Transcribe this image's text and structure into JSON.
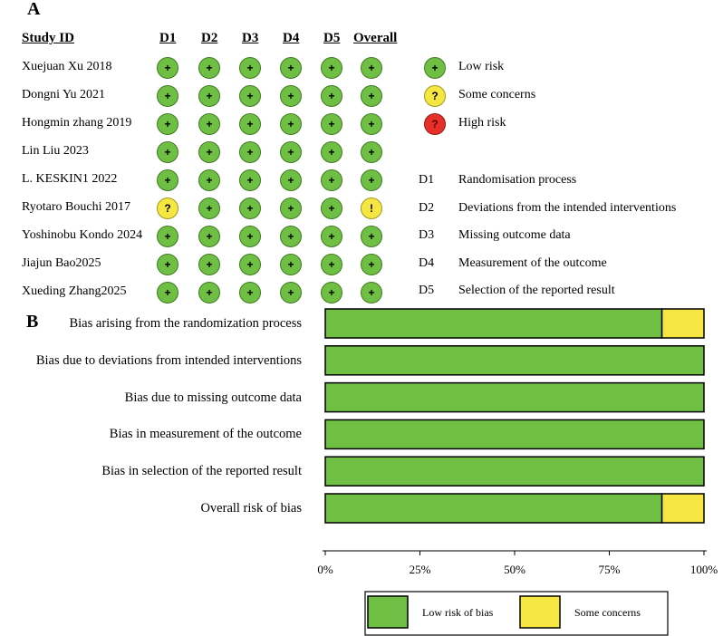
{
  "panel_labels": {
    "a": "A",
    "b": "B"
  },
  "colors": {
    "low": "#6fbf45",
    "some": "#f5e642",
    "high": "#e8302a",
    "low_border": "#3f7a22",
    "some_border": "#9a9a20",
    "high_border": "#8a1a15"
  },
  "symbols": {
    "low": "+",
    "some": "?",
    "high": "?",
    "overall_some": "!"
  },
  "traffic_light": {
    "headers": {
      "study": "Study ID",
      "domains": [
        "D1",
        "D2",
        "D3",
        "D4",
        "D5"
      ],
      "overall": "Overall"
    },
    "studies": [
      {
        "name": "Xuejuan Xu 2018",
        "ratings": [
          "low",
          "low",
          "low",
          "low",
          "low"
        ],
        "overall": "low"
      },
      {
        "name": "Dongni Yu 2021",
        "ratings": [
          "low",
          "low",
          "low",
          "low",
          "low"
        ],
        "overall": "low"
      },
      {
        "name": "Hongmin zhang 2019",
        "ratings": [
          "low",
          "low",
          "low",
          "low",
          "low"
        ],
        "overall": "low"
      },
      {
        "name": "Lin Liu 2023",
        "ratings": [
          "low",
          "low",
          "low",
          "low",
          "low"
        ],
        "overall": "low"
      },
      {
        "name": "L. KESKIN1 2022",
        "ratings": [
          "low",
          "low",
          "low",
          "low",
          "low"
        ],
        "overall": "low"
      },
      {
        "name": "Ryotaro Bouchi 2017",
        "ratings": [
          "some",
          "low",
          "low",
          "low",
          "low"
        ],
        "overall": "some"
      },
      {
        "name": "Yoshinobu Kondo 2024",
        "ratings": [
          "low",
          "low",
          "low",
          "low",
          "low"
        ],
        "overall": "low"
      },
      {
        "name": "Jiajun Bao2025",
        "ratings": [
          "low",
          "low",
          "low",
          "low",
          "low"
        ],
        "overall": "low"
      },
      {
        "name": "Xueding Zhang2025",
        "ratings": [
          "low",
          "low",
          "low",
          "low",
          "low"
        ],
        "overall": "low"
      }
    ],
    "risk_legend": [
      {
        "level": "low",
        "label": "Low risk"
      },
      {
        "level": "some",
        "label": "Some concerns"
      },
      {
        "level": "high",
        "label": "High risk"
      }
    ],
    "domain_legend": [
      {
        "code": "D1",
        "label": "Randomisation process"
      },
      {
        "code": "D2",
        "label": "Deviations from the intended interventions"
      },
      {
        "code": "D3",
        "label": "Missing outcome data"
      },
      {
        "code": "D4",
        "label": "Measurement of the outcome"
      },
      {
        "code": "D5",
        "label": "Selection of the reported result"
      }
    ]
  },
  "chart_data": {
    "type": "bar",
    "orientation": "horizontal",
    "stacked": true,
    "categories": [
      "Bias arising from the randomization process",
      "Bias due to deviations from intended interventions",
      "Bias due to missing outcome data",
      "Bias in measurement of the outcome",
      "Bias in selection of the reported result",
      "Overall risk of bias"
    ],
    "series": [
      {
        "name": "Low risk of bias",
        "level": "low",
        "values": [
          88.9,
          100,
          100,
          100,
          100,
          88.9
        ]
      },
      {
        "name": "Some concerns",
        "level": "some",
        "values": [
          11.1,
          0,
          0,
          0,
          0,
          11.1
        ]
      }
    ],
    "xlim": [
      0,
      100
    ],
    "xticks": [
      "0%",
      "25%",
      "50%",
      "75%",
      "100%"
    ],
    "xtick_values": [
      0,
      25,
      50,
      75,
      100
    ],
    "legend_position": "bottom"
  }
}
